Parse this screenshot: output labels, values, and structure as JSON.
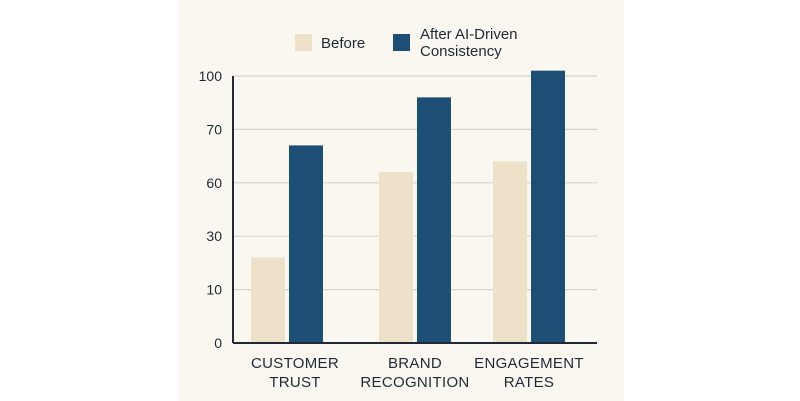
{
  "chart_data": {
    "type": "bar",
    "title": "",
    "xlabel": "",
    "ylabel": "",
    "categories": [
      [
        "CUSTOMER",
        "TRUST"
      ],
      [
        "BRAND",
        "RECOGNITION"
      ],
      [
        "ENGAGEMENT",
        "RATES"
      ]
    ],
    "y_ticks": [
      "0",
      "10",
      "30",
      "60",
      "70",
      "100"
    ],
    "series": [
      {
        "name": "Before",
        "color": "#ede1ca",
        "values": [
          1.6,
          3.2,
          3.4
        ]
      },
      {
        "name": "After AI-Driven Consistency",
        "name_lines": [
          "After AI-Driven",
          "Consistency"
        ],
        "color": "#1d4e75",
        "values": [
          3.7,
          4.6,
          5.1
        ]
      }
    ],
    "ylim": [
      0,
      5
    ],
    "grid": true,
    "legend_position": "top-center",
    "background": "#faf7f0",
    "axis_color": "#1f2a36",
    "grid_color": "#d8d4cc"
  }
}
